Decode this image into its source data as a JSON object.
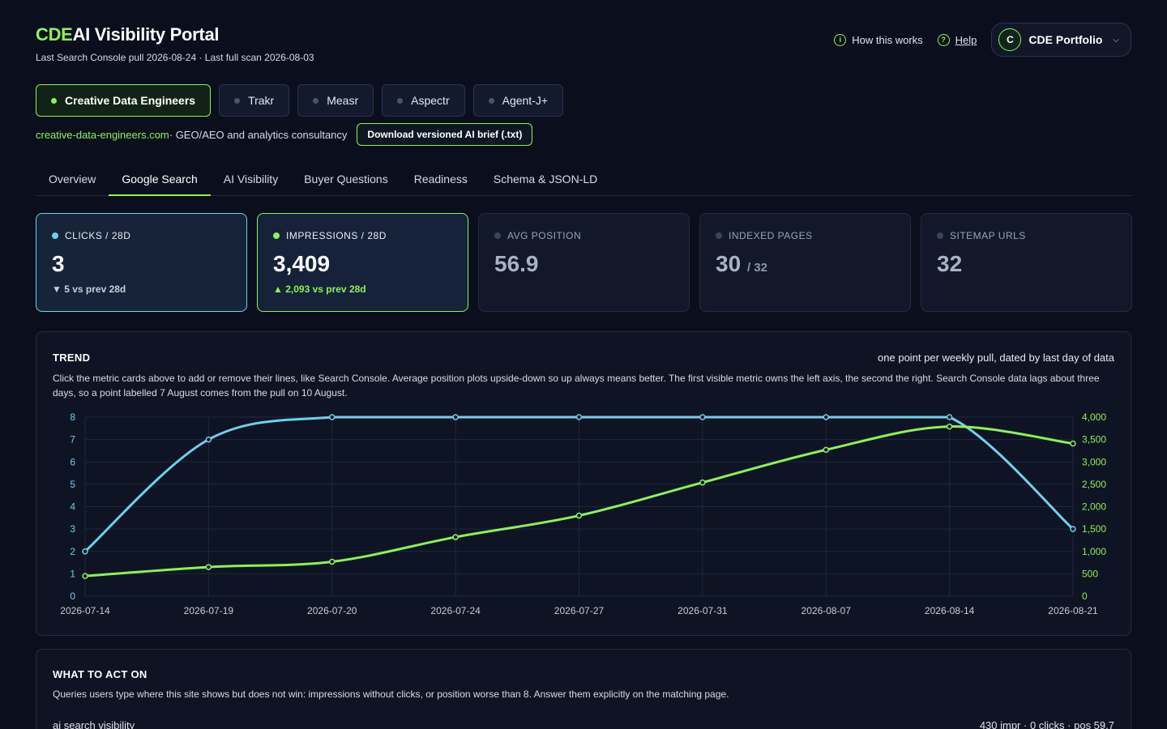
{
  "header": {
    "brand_accent": "CDE",
    "brand_rest": "AI Visibility Portal",
    "subline": "Last Search Console pull 2026-08-24 · Last full scan 2026-08-03"
  },
  "top_links": {
    "how": "How this works",
    "help": "Help",
    "portfolio_initial": "C",
    "portfolio_name": "CDE Portfolio"
  },
  "sites": [
    {
      "label": "Creative Data Engineers",
      "active": true
    },
    {
      "label": "Trakr",
      "active": false
    },
    {
      "label": "Measr",
      "active": false
    },
    {
      "label": "Aspectr",
      "active": false
    },
    {
      "label": "Agent-J+",
      "active": false
    }
  ],
  "site_info": {
    "domain": "creative-data-engineers.com",
    "desc": " · GEO/AEO and analytics consultancy",
    "download": "Download versioned AI brief (.txt)"
  },
  "tabs": [
    "Overview",
    "Google Search",
    "AI Visibility",
    "Buyer Questions",
    "Readiness",
    "Schema & JSON-LD"
  ],
  "active_tab": 1,
  "cards": {
    "clicks": {
      "label": "CLICKS / 28D",
      "value": "3",
      "delta": "▼ 5 vs prev 28d"
    },
    "impressions": {
      "label": "IMPRESSIONS / 28D",
      "value": "3,409",
      "delta": "▲ 2,093 vs prev 28d"
    },
    "avg_position": {
      "label": "AVG POSITION",
      "value": "56.9"
    },
    "indexed": {
      "label": "INDEXED PAGES",
      "value": "30",
      "sub": "/ 32"
    },
    "sitemap": {
      "label": "SITEMAP URLS",
      "value": "32"
    }
  },
  "trend": {
    "title": "TREND",
    "note": "one point per weekly pull, dated by last day of data",
    "desc": "Click the metric cards above to add or remove their lines, like Search Console. Average position plots upside-down so up always means better. The first visible metric owns the left axis, the second the right. Search Console data lags about three days, so a point labelled 7 August comes from the pull on 10 August."
  },
  "chart_data": {
    "type": "line",
    "x": [
      "2026-07-14",
      "2026-07-19",
      "2026-07-20",
      "2026-07-24",
      "2026-07-27",
      "2026-07-31",
      "2026-08-07",
      "2026-08-14",
      "2026-08-21"
    ],
    "series": [
      {
        "name": "CLICKS / 28D",
        "axis": "left",
        "color": "#6fd0ea",
        "values": [
          2,
          7,
          8,
          8,
          8,
          8,
          8,
          8,
          3
        ]
      },
      {
        "name": "IMPRESSIONS / 28D",
        "axis": "right",
        "color": "#8ef05a",
        "values": [
          450,
          650,
          770,
          1320,
          1800,
          2540,
          3270,
          3790,
          3409
        ]
      }
    ],
    "y_left": {
      "min": 0,
      "max": 8,
      "ticks": [
        "0",
        "1",
        "2",
        "3",
        "4",
        "5",
        "6",
        "7",
        "8"
      ]
    },
    "y_right": {
      "min": 0,
      "max": 4000,
      "ticks": [
        "0",
        "500",
        "1,000",
        "1,500",
        "2,000",
        "2,500",
        "3,000",
        "3,500",
        "4,000"
      ]
    },
    "grid": true
  },
  "act": {
    "title": "WHAT TO ACT ON",
    "desc": "Queries users type where this site shows but does not win: impressions without clicks, or position worse than 8. Answer them explicitly on the matching page.",
    "row_query": "ai search visibility",
    "row_stats": "430 impr · 0 clicks · pos 59.7"
  }
}
